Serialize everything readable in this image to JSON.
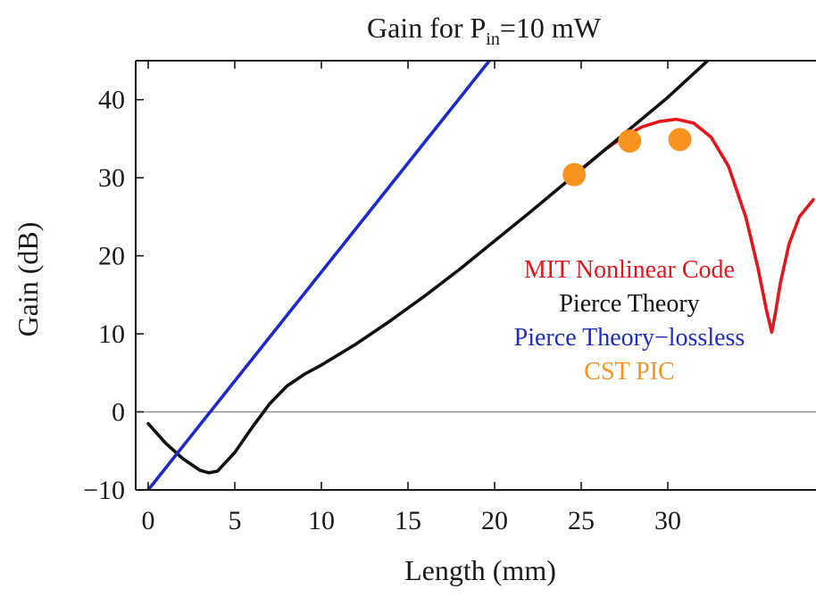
{
  "chart_data": {
    "type": "line",
    "title": "Gain for P",
    "title_subscript": "in",
    "title_suffix": "=10 mW",
    "xlabel": "Length (mm)",
    "ylabel": "Gain (dB)",
    "xlim": [
      -0.4,
      38.4
    ],
    "ylim": [
      -10,
      45
    ],
    "x_ticks": [
      0,
      5,
      10,
      15,
      20,
      25,
      30
    ],
    "y_ticks": [
      -10,
      0,
      10,
      20,
      30,
      40
    ],
    "x_tick_labels": [
      "0",
      "5",
      "10",
      "15",
      "20",
      "25",
      "30"
    ],
    "y_tick_labels": [
      "−10",
      "0",
      "10",
      "20",
      "30",
      "40"
    ],
    "zero_line": true,
    "grid": false,
    "legend_position": "right",
    "series": [
      {
        "name": "MIT Nonlinear Code",
        "color": "#e8141b",
        "style": "line",
        "x": [
          24.6,
          25.5,
          26.5,
          27.5,
          28.5,
          29.5,
          30.5,
          31.5,
          32.5,
          33.5,
          34.5,
          35.2,
          35.7,
          36.0,
          36.2,
          36.5,
          37.0,
          37.6,
          38.4
        ],
        "y": [
          30.4,
          32.0,
          33.8,
          35.3,
          36.5,
          37.2,
          37.5,
          37.0,
          35.2,
          31.5,
          25.0,
          18.5,
          13.0,
          10.2,
          12.5,
          16.5,
          21.5,
          25.0,
          27.2
        ]
      },
      {
        "name": "Pierce Theory",
        "color": "#111111",
        "style": "line",
        "x": [
          0,
          1,
          2,
          3,
          3.5,
          4,
          5,
          6,
          7,
          8,
          9,
          10,
          12,
          14,
          16,
          18,
          20,
          22,
          24,
          26,
          28,
          30,
          32.3
        ],
        "y": [
          -1.5,
          -4.0,
          -6.0,
          -7.5,
          -7.8,
          -7.6,
          -5.2,
          -2.0,
          1.0,
          3.3,
          4.8,
          6.0,
          8.7,
          11.7,
          14.9,
          18.3,
          21.9,
          25.5,
          29.2,
          32.9,
          36.6,
          40.3,
          45.0
        ]
      },
      {
        "name": "Pierce Theory−lossless",
        "color": "#1c2bc8",
        "style": "line",
        "x": [
          0,
          19.7
        ],
        "y": [
          -10,
          45
        ]
      },
      {
        "name": "CST PIC",
        "color": "#f7931e",
        "style": "scatter",
        "x": [
          24.6,
          27.8,
          30.7
        ],
        "y": [
          30.4,
          34.7,
          34.9
        ]
      }
    ]
  }
}
